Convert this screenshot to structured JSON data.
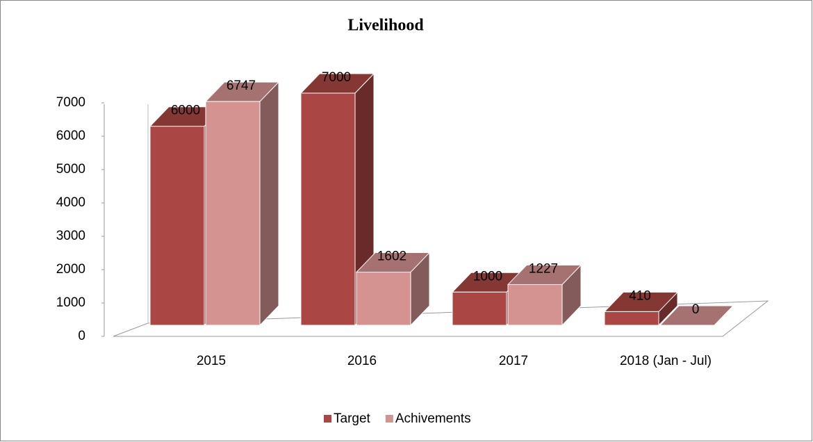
{
  "chart_data": {
    "type": "bar3d",
    "title": "Livelihood",
    "categories": [
      "2015",
      "2016",
      "2017",
      "2018 (Jan - Jul)"
    ],
    "series": [
      {
        "name": "Target",
        "color": "#aa4643",
        "values": [
          6000,
          7000,
          1000,
          410
        ]
      },
      {
        "name": "Achivements",
        "color": "#d49291",
        "values": [
          6747,
          1602,
          1227,
          0
        ]
      }
    ],
    "ylim": [
      0,
      7000
    ],
    "yticks": [
      0,
      1000,
      2000,
      3000,
      4000,
      5000,
      6000,
      7000
    ],
    "legend": "bottom"
  }
}
